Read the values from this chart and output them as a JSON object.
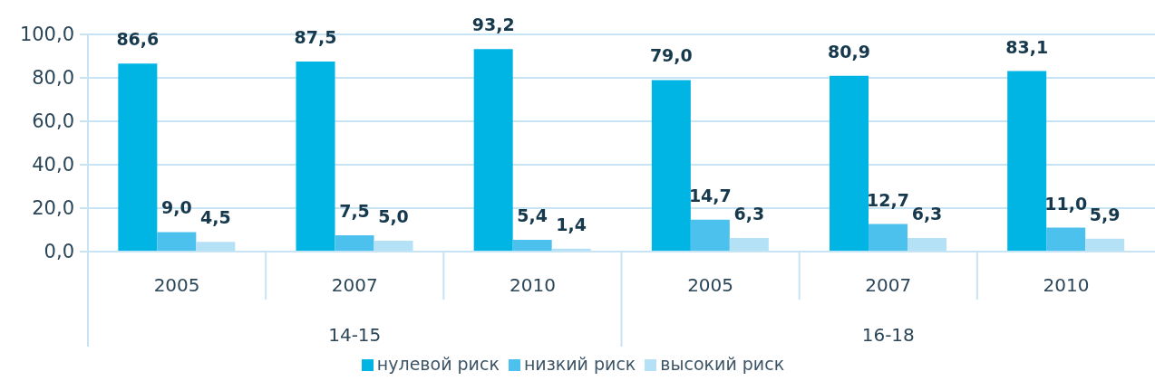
{
  "chart_data": {
    "type": "bar",
    "categories": [
      "2005",
      "2007",
      "2010",
      "2005",
      "2007",
      "2010"
    ],
    "annotations": [
      "14-15",
      "16-18"
    ],
    "series": [
      {
        "name": "нулевой риск",
        "color": "#00b4e4",
        "values": [
          86.6,
          87.5,
          93.2,
          79.0,
          80.9,
          83.1
        ],
        "value_labels": [
          "86,6",
          "87,5",
          "93,2",
          "79,0",
          "80,9",
          "83,1"
        ]
      },
      {
        "name": "низкий риск",
        "color": "#4cc1ee",
        "values": [
          9.0,
          7.5,
          5.4,
          14.7,
          12.7,
          11.0
        ],
        "value_labels": [
          "9,0",
          "7,5",
          "5,4",
          "14,7",
          "12,7",
          "11,0"
        ]
      },
      {
        "name": "высокий риск",
        "color": "#b5e1f7",
        "values": [
          4.5,
          5.0,
          1.4,
          6.3,
          6.3,
          5.9
        ],
        "value_labels": [
          "4,5",
          "5,0",
          "1,4",
          "6,3",
          "6,3",
          "5,9"
        ]
      }
    ],
    "ylim": [
      0,
      100
    ],
    "yticks": [
      {
        "value": 0,
        "label": "0,0"
      },
      {
        "value": 20,
        "label": "20,0"
      },
      {
        "value": 40,
        "label": "40,0"
      },
      {
        "value": 60,
        "label": "60,0"
      },
      {
        "value": 80,
        "label": "80,0"
      },
      {
        "value": 100,
        "label": "100,0"
      }
    ],
    "grid": "y",
    "legend": "bottom"
  }
}
